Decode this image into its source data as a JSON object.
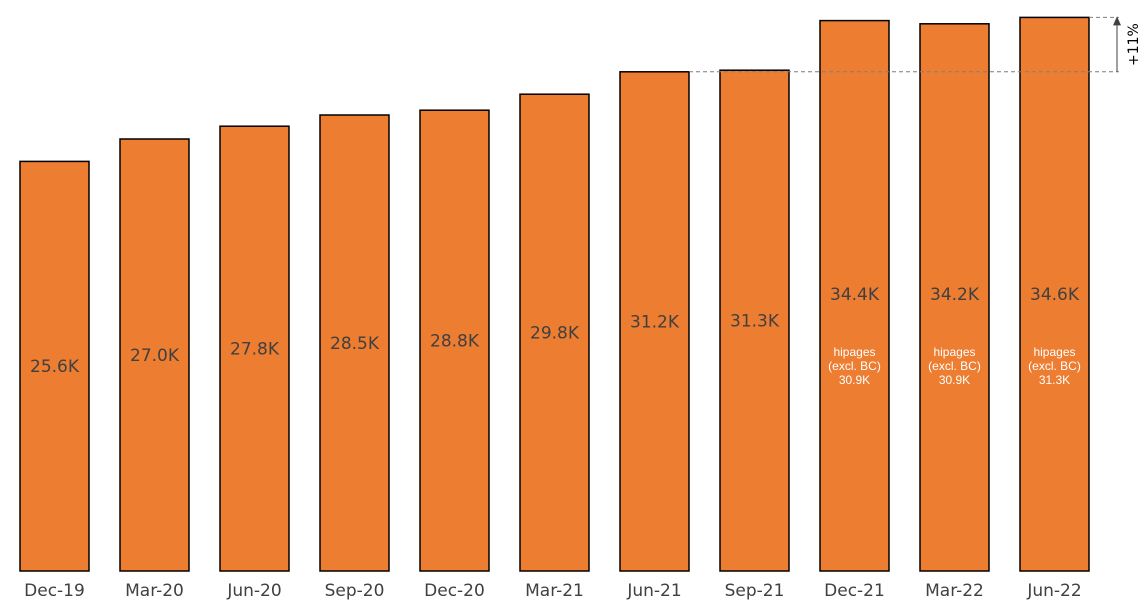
{
  "chart_data": {
    "type": "bar",
    "title": "",
    "xlabel": "",
    "ylabel": "",
    "categories": [
      "Dec-19",
      "Mar-20",
      "Jun-20",
      "Sep-20",
      "Dec-20",
      "Mar-21",
      "Jun-21",
      "Sep-21",
      "Dec-21",
      "Mar-22",
      "Jun-22"
    ],
    "values": [
      25.6,
      27.0,
      27.8,
      28.5,
      28.8,
      29.8,
      31.2,
      31.3,
      34.4,
      34.2,
      34.6
    ],
    "value_labels": [
      "25.6K",
      "27.0K",
      "27.8K",
      "28.5K",
      "28.8K",
      "29.8K",
      "31.2K",
      "31.3K",
      "34.4K",
      "34.2K",
      "34.6K"
    ],
    "sub_labels": [
      {
        "index": 8,
        "lines": [
          "hipages",
          "(excl. BC)",
          "30.9K"
        ]
      },
      {
        "index": 9,
        "lines": [
          "hipages",
          "(excl. BC)",
          "30.9K"
        ]
      },
      {
        "index": 10,
        "lines": [
          "hipages",
          "(excl. BC)",
          "31.3K"
        ]
      }
    ],
    "ylim": [
      0,
      35
    ],
    "grid": false,
    "legend": "none",
    "annotation": {
      "text": "+11%",
      "from_index": 6,
      "to_index": 10
    }
  },
  "colors": {
    "bar_fill": "#ED7D31",
    "bar_stroke": "#000000",
    "axis_text": "#404040",
    "sub_text": "#ffffff",
    "dashed_line": "#7f7f7f",
    "arrow": "#404040"
  }
}
